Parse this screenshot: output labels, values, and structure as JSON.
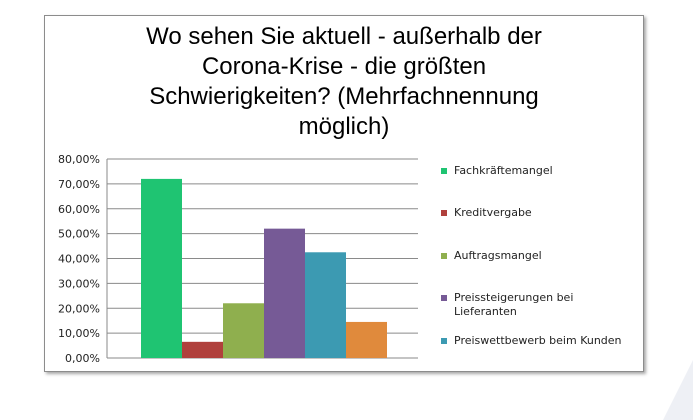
{
  "chart_data": {
    "type": "bar",
    "title_lines": [
      "Wo sehen Sie aktuell - außerhalb der",
      "Corona-Krise - die größten",
      "Schwierigkeiten? (Mehrfachnennung",
      "möglich)"
    ],
    "y_ticks": [
      "80,00%",
      "70,00%",
      "60,00%",
      "50,00%",
      "40,00%",
      "30,00%",
      "20,00%",
      "10,00%",
      "0,00%"
    ],
    "ylim": [
      0,
      80
    ],
    "grid": true,
    "legend_position": "right",
    "series": [
      {
        "name": "Fachkräftemangel",
        "value": 72,
        "color": "#1fc472"
      },
      {
        "name": "Kreditvergabe",
        "value": 6.5,
        "color": "#b0403c"
      },
      {
        "name": "Auftragsmangel",
        "value": 22,
        "color": "#8faf4e"
      },
      {
        "name": "Preissteigerungen bei Lieferanten",
        "value": 52,
        "color": "#765a96"
      },
      {
        "name": "Preiswettbewerb beim Kunden",
        "value": 42.5,
        "color": "#3c9ab2"
      },
      {
        "name": "",
        "value": 14.5,
        "color": "#e08a3c"
      }
    ],
    "legend": [
      {
        "lines": [
          "Fachkräftemangel"
        ],
        "color": "#1fc472"
      },
      {
        "lines": [
          "Kreditvergabe"
        ],
        "color": "#b0403c"
      },
      {
        "lines": [
          "Auftragsmangel"
        ],
        "color": "#8faf4e"
      },
      {
        "lines": [
          "Preissteigerungen bei",
          "Lieferanten"
        ],
        "color": "#765a96"
      },
      {
        "lines": [
          "Preiswettbewerb beim Kunden"
        ],
        "color": "#3c9ab2"
      }
    ]
  }
}
